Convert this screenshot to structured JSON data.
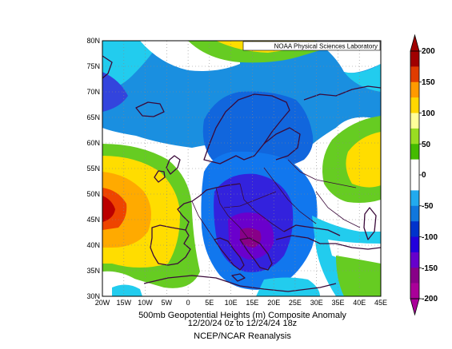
{
  "header": {
    "lab_label": "NOAA Physical Sciences Laboratory"
  },
  "map": {
    "region": "Europe / North Atlantic",
    "lat_labels": [
      "80N",
      "75N",
      "70N",
      "65N",
      "60N",
      "55N",
      "50N",
      "45N",
      "40N",
      "35N",
      "30N"
    ],
    "lon_labels": [
      "20W",
      "15W",
      "10W",
      "5W",
      "0",
      "5E",
      "10E",
      "15E",
      "20E",
      "25E",
      "30E",
      "35E",
      "40E",
      "45E"
    ],
    "features": [
      {
        "name": "Eastern Atlantic positive anomaly center",
        "lat": 48,
        "lon": -20,
        "sign": "positive"
      },
      {
        "name": "Central Mediterranean / Balkans negative anomaly center",
        "lat": 41,
        "lon": 15,
        "sign": "negative"
      },
      {
        "name": "Northeastern positive anomaly",
        "lat": 55,
        "lon": 43,
        "sign": "positive"
      },
      {
        "name": "Northern ridge",
        "lat": 78,
        "lon": 15,
        "sign": "positive"
      }
    ]
  },
  "colorbar": {
    "labels": [
      "200",
      "150",
      "100",
      "50",
      "0",
      "-50",
      "-100",
      "-150",
      "-200"
    ],
    "colors": [
      "#a00000",
      "#e03c00",
      "#ff9a00",
      "#ffd700",
      "#ffff9a",
      "#99dd22",
      "#44bb00",
      "#ffffff",
      "#ffffff",
      "#22aaee",
      "#1177dd",
      "#0033cc",
      "#2200dd",
      "#6600cc",
      "#880088",
      "#aa0099"
    ]
  },
  "caption": {
    "line1": "500mb Geopotential Heights (m)    Composite Anomaly",
    "line2": "12/20/24 0z  to 12/24/24 18z",
    "line3": "NCEP/NCAR Reanalysis"
  }
}
